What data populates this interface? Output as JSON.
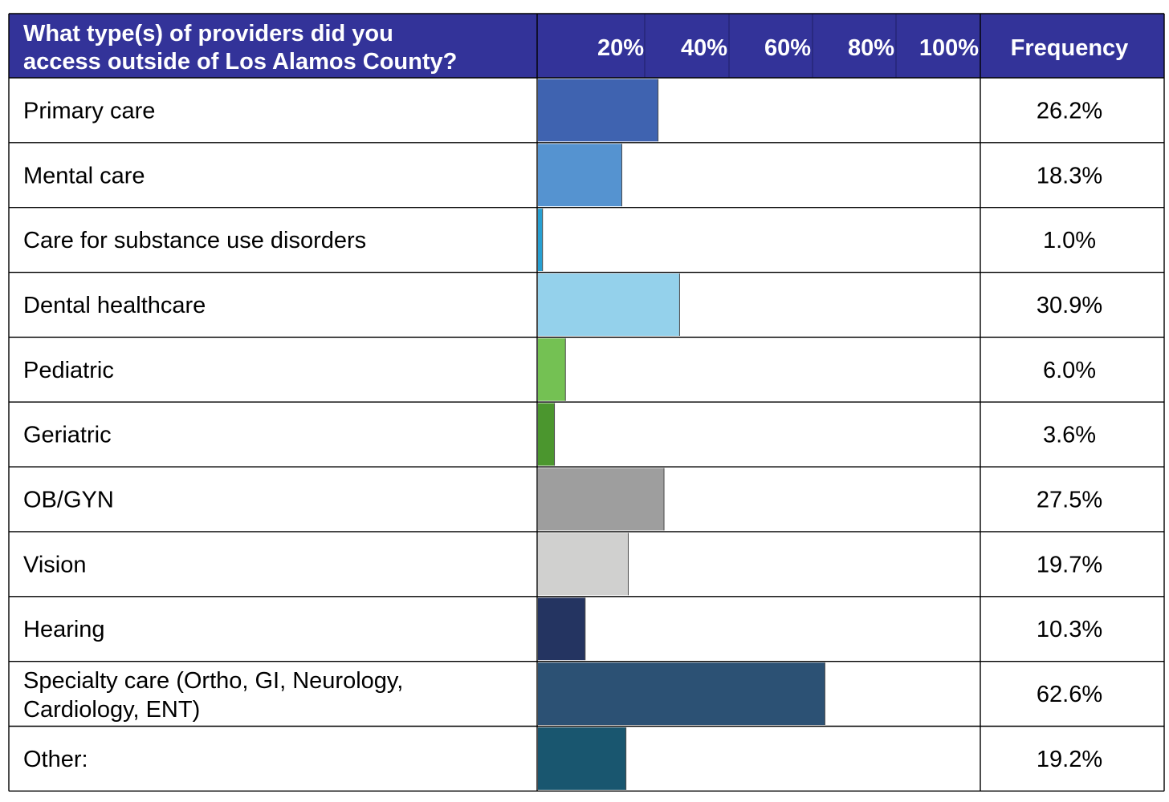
{
  "chart_data": {
    "type": "bar",
    "orientation": "horizontal",
    "title": "What type(s) of providers did you access outside of Los Alamos County?",
    "title_lines": [
      "What type(s) of providers did you",
      "access outside of Los Alamos County?"
    ],
    "axis_ticks": [
      "20%",
      "40%",
      "60%",
      "80%",
      "100%"
    ],
    "value_column_header": "Frequency",
    "xlim": [
      0,
      100
    ],
    "header_color": "#333399",
    "rows": [
      {
        "lines": [
          "Primary care"
        ],
        "value": 26.2,
        "display": "26.2%",
        "color": "#3F63B0"
      },
      {
        "lines": [
          "Mental care"
        ],
        "value": 18.3,
        "display": "18.3%",
        "color": "#5593D0"
      },
      {
        "lines": [
          "Care for substance use disorders"
        ],
        "value": 1.0,
        "display": "1.0%",
        "color": "#279FD1"
      },
      {
        "lines": [
          "Dental healthcare"
        ],
        "value": 30.9,
        "display": "30.9%",
        "color": "#94D1EB"
      },
      {
        "lines": [
          "Pediatric"
        ],
        "value": 6.0,
        "display": "6.0%",
        "color": "#74C153"
      },
      {
        "lines": [
          "Geriatric"
        ],
        "value": 3.6,
        "display": "3.6%",
        "color": "#4B962E"
      },
      {
        "lines": [
          "OB/GYN"
        ],
        "value": 27.5,
        "display": "27.5%",
        "color": "#9E9E9E"
      },
      {
        "lines": [
          "Vision"
        ],
        "value": 19.7,
        "display": "19.7%",
        "color": "#D0D0CF"
      },
      {
        "lines": [
          "Hearing"
        ],
        "value": 10.3,
        "display": "10.3%",
        "color": "#243461"
      },
      {
        "lines": [
          "Specialty care (Ortho, GI, Neurology,",
          "Cardiology, ENT)"
        ],
        "value": 62.6,
        "display": "62.6%",
        "color": "#2C5174"
      },
      {
        "lines": [
          "Other:"
        ],
        "value": 19.2,
        "display": "19.2%",
        "color": "#19566F"
      }
    ]
  }
}
